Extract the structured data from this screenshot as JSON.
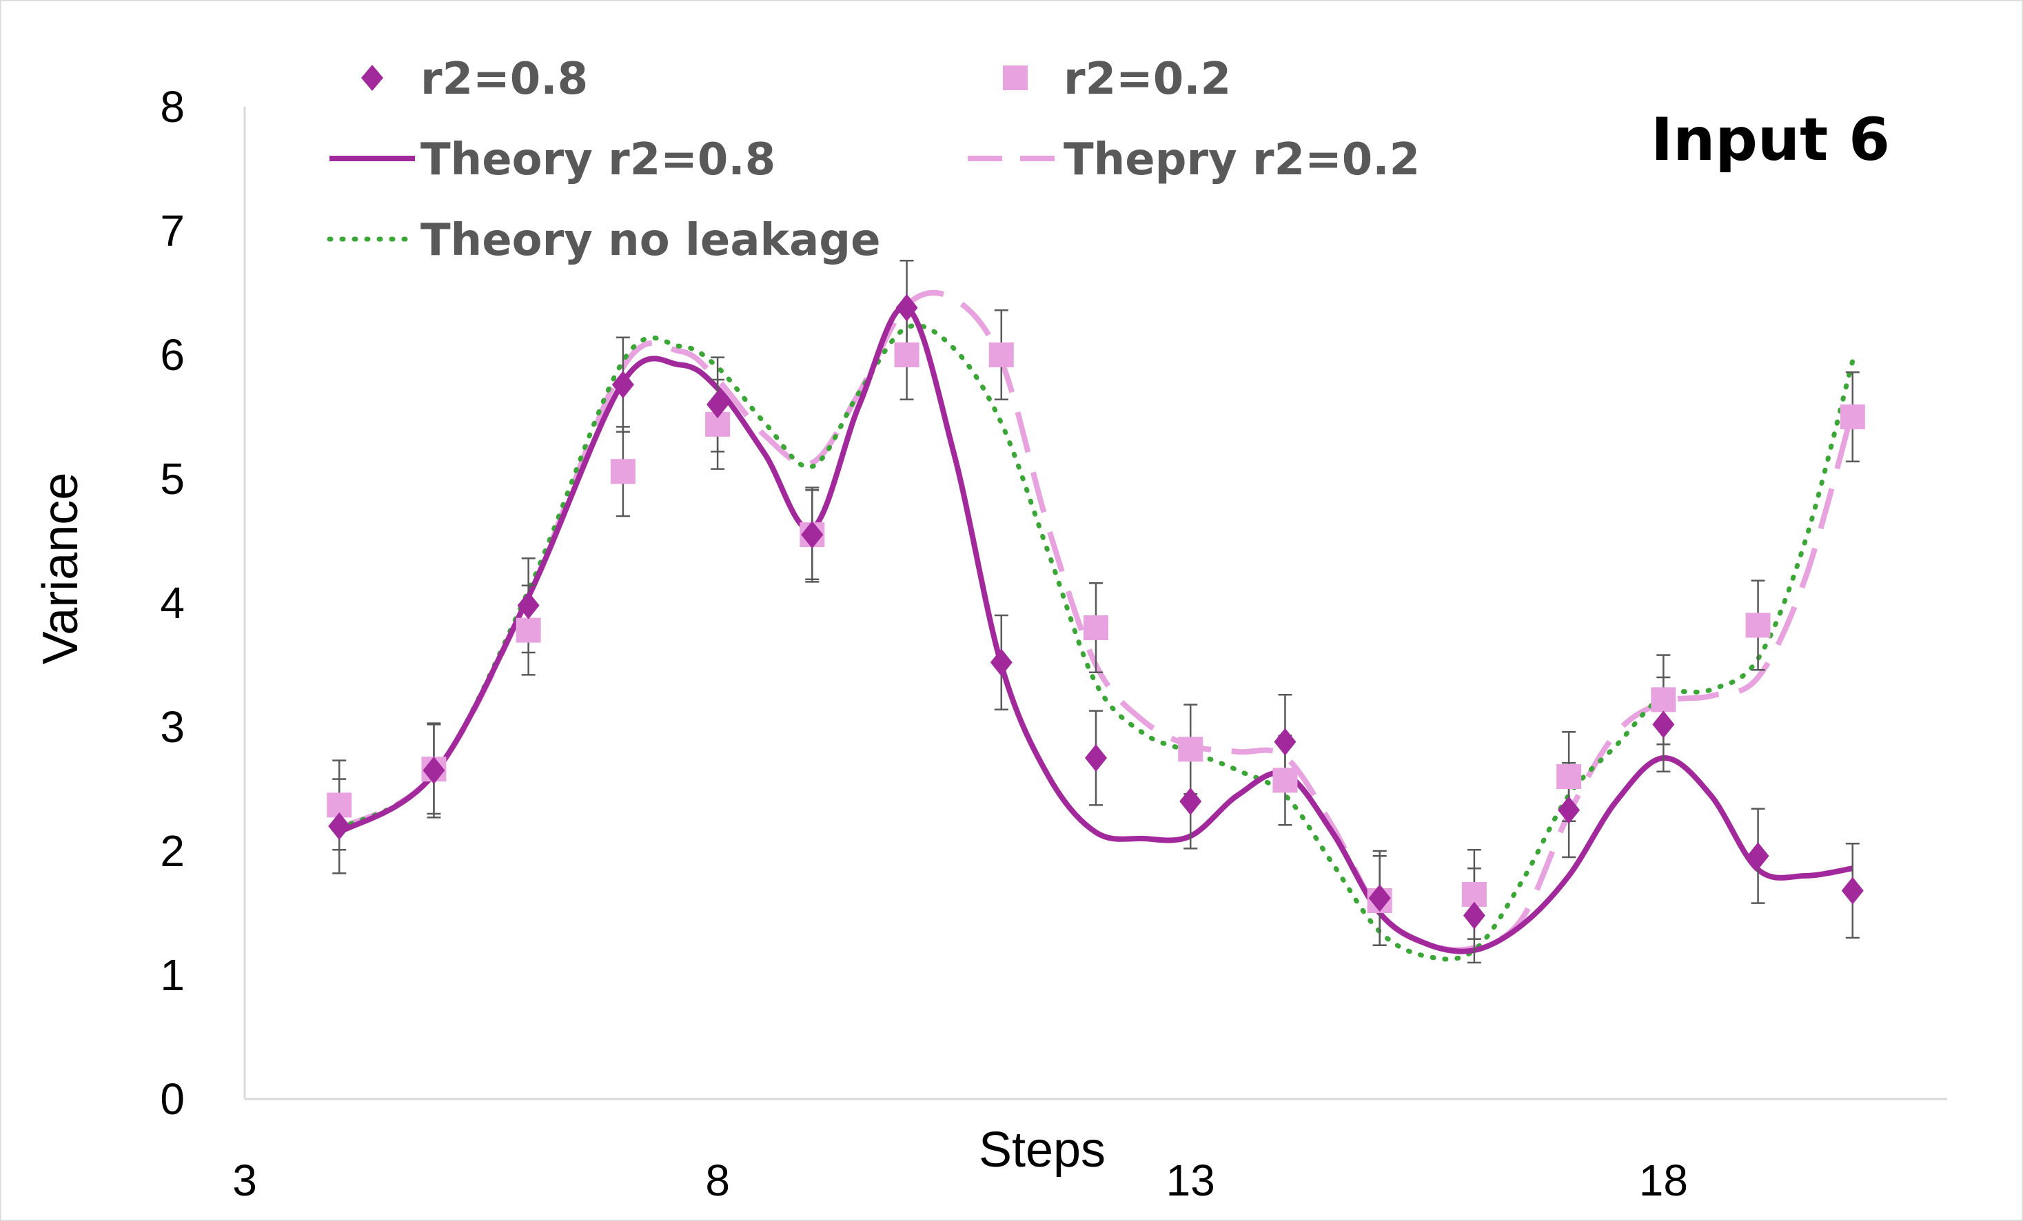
{
  "chart_data": {
    "type": "scatter",
    "title": "",
    "annotation": "Input 6",
    "xlabel": "Steps",
    "ylabel": "Variance",
    "xlim": [
      3,
      21
    ],
    "ylim": [
      0,
      8
    ],
    "xticks": [
      3,
      8,
      13,
      18
    ],
    "yticks": [
      0,
      1,
      2,
      3,
      4,
      5,
      6,
      7,
      8
    ],
    "grid": false,
    "legend_position": "top",
    "scatter_series": [
      {
        "name": "r2=0.8",
        "marker": "diamond",
        "color": "#a2299c",
        "x": [
          4,
          5,
          6,
          7,
          8,
          9,
          10,
          11,
          12,
          13,
          14,
          15,
          16,
          17,
          18,
          19,
          20
        ],
        "y": [
          2.2,
          2.65,
          3.98,
          5.76,
          5.6,
          4.55,
          6.38,
          3.52,
          2.75,
          2.4,
          2.88,
          1.62,
          1.48,
          2.33,
          3.02,
          1.96,
          1.68
        ],
        "err": [
          0.38,
          0.38,
          0.38,
          0.38,
          0.38,
          0.38,
          0.38,
          0.38,
          0.38,
          0.38,
          0.38,
          0.38,
          0.38,
          0.38,
          0.38,
          0.38,
          0.38
        ]
      },
      {
        "name": "r2=0.2",
        "marker": "square",
        "color": "#e7a2df",
        "x": [
          4,
          5,
          6,
          7,
          8,
          9,
          10,
          11,
          12,
          13,
          14,
          15,
          16,
          17,
          18,
          19,
          20
        ],
        "y": [
          2.37,
          2.66,
          3.78,
          5.06,
          5.44,
          4.55,
          6,
          6,
          3.8,
          2.82,
          2.57,
          1.6,
          1.65,
          2.6,
          3.22,
          3.82,
          5.5
        ],
        "err": [
          0.36,
          0.36,
          0.36,
          0.36,
          0.36,
          0.36,
          0.36,
          0.36,
          0.36,
          0.36,
          0.36,
          0.36,
          0.36,
          0.36,
          0.36,
          0.36,
          0.36
        ]
      }
    ],
    "line_series": [
      {
        "name": "Theory r2=0.8",
        "style": "solid",
        "color": "#a2299c",
        "x": [
          4,
          5,
          6,
          7,
          7.6,
          8,
          8.5,
          9,
          9.5,
          10,
          10.5,
          11,
          11.5,
          12,
          12.5,
          13,
          13.5,
          14,
          14.5,
          15,
          15.5,
          16,
          16.5,
          17,
          17.5,
          18,
          18.5,
          19,
          19.5,
          20
        ],
        "y": [
          2.15,
          2.62,
          4.05,
          5.78,
          5.92,
          5.73,
          5.2,
          4.6,
          5.6,
          6.38,
          5.2,
          3.5,
          2.6,
          2.15,
          2.1,
          2.12,
          2.45,
          2.62,
          2.15,
          1.5,
          1.25,
          1.2,
          1.4,
          1.8,
          2.4,
          2.75,
          2.45,
          1.85,
          1.8,
          1.86
        ]
      },
      {
        "name": "Thepry r2=0.2",
        "style": "dashed",
        "color": "#e7a2df",
        "x": [
          4,
          5,
          6,
          7,
          7.6,
          8,
          8.5,
          9,
          9.5,
          10,
          10.5,
          11,
          11.5,
          12,
          12.5,
          13,
          13.5,
          14,
          14.5,
          15,
          15.5,
          16,
          16.5,
          17,
          17.5,
          18,
          18.5,
          19,
          19.5,
          20
        ],
        "y": [
          2.18,
          2.62,
          4.05,
          5.9,
          6.03,
          5.8,
          5.35,
          5.13,
          5.7,
          6.4,
          6.45,
          5.95,
          4.6,
          3.5,
          3.05,
          2.85,
          2.8,
          2.76,
          2.2,
          1.5,
          1.25,
          1.22,
          1.45,
          2.3,
          2.95,
          3.2,
          3.25,
          3.4,
          4.2,
          5.55
        ]
      },
      {
        "name": "Theory no leakage",
        "style": "dotted",
        "color": "#3aa636",
        "x": [
          4,
          5,
          6,
          7,
          7.6,
          8,
          8.5,
          9,
          9.5,
          10,
          10.5,
          11,
          11.5,
          12,
          12.5,
          13,
          13.5,
          14,
          14.5,
          15,
          15.5,
          16,
          16.5,
          17,
          17.5,
          18,
          18.5,
          19,
          19.5,
          20
        ],
        "y": [
          2.18,
          2.62,
          4.1,
          5.95,
          6.07,
          5.9,
          5.45,
          5.1,
          5.7,
          6.22,
          6.05,
          5.45,
          4.4,
          3.35,
          2.95,
          2.8,
          2.65,
          2.45,
          1.9,
          1.35,
          1.15,
          1.2,
          1.75,
          2.45,
          2.85,
          3.25,
          3.3,
          3.55,
          4.5,
          5.95
        ]
      }
    ]
  }
}
